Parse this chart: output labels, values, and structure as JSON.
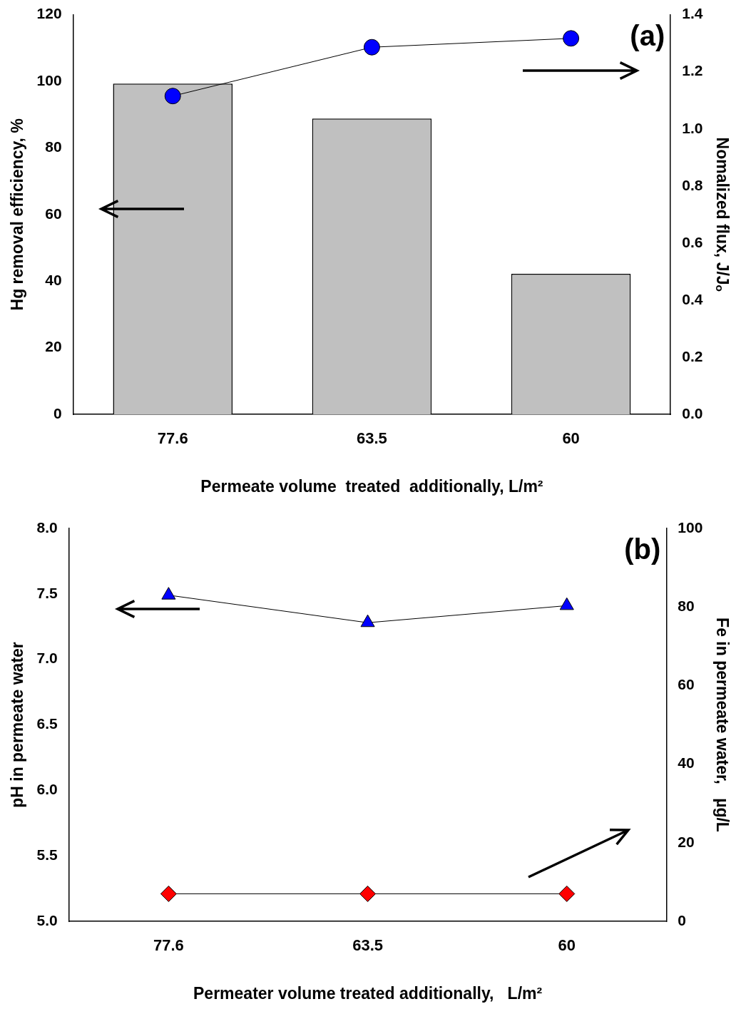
{
  "chart_data": [
    {
      "type": "bar",
      "annotations": [
        "(a)"
      ],
      "xlabel": "Permeate volume  treated  additionally, L/m²",
      "ylabel": "Hg removal efficiency, %",
      "y2label": "Nomalized flux, J/Jₒ",
      "categories": [
        "77.6",
        "63.5",
        "60"
      ],
      "series": [
        {
          "color": "#c0c0c0",
          "values": [
            99.3,
            88.8,
            42.2
          ]
        },
        {
          "type": "line",
          "axis": "y2",
          "color": "#0000ff",
          "marker": "circle",
          "line_style": "solid",
          "values": [
            1.115,
            1.286,
            1.317
          ]
        }
      ],
      "ylim": [
        0,
        120
      ],
      "yticks": [
        0,
        20,
        40,
        60,
        80,
        100,
        120
      ],
      "y2lim": [
        0,
        1.4
      ],
      "y2ticks": [
        {
          "value": 0,
          "label": "0.0"
        },
        {
          "value": 0.2,
          "label": "0.2"
        },
        {
          "value": 0.4,
          "label": "0.4"
        },
        {
          "value": 0.6,
          "label": "0.6"
        },
        {
          "value": 0.8,
          "label": "0.8"
        },
        {
          "value": 1,
          "label": "1.0"
        },
        {
          "value": 1.2,
          "label": "1.2"
        },
        {
          "value": 1.4,
          "label": "1.4"
        }
      ],
      "grid": false,
      "legend": false
    },
    {
      "type": "line",
      "annotations": [
        "(b)"
      ],
      "xlabel": "Permeater volume treated additionally,   L/m²",
      "ylabel": "pH in permeate water",
      "y2label": "Fe in permeate water,   µg/L",
      "categories": [
        "77.6",
        "63.5",
        "60"
      ],
      "series": [
        {
          "color": "#0000ff",
          "marker": "triangle",
          "line_style": "solid",
          "values": [
            7.49,
            7.28,
            7.41
          ]
        },
        {
          "axis": "y2",
          "color": "#ff0000",
          "marker": "diamond",
          "line_style": "solid",
          "values": [
            7,
            7,
            7
          ]
        }
      ],
      "ylim": [
        5,
        8
      ],
      "yticks": [
        {
          "value": 5,
          "label": "5.0"
        },
        {
          "value": 5.5,
          "label": "5.5"
        },
        {
          "value": 6,
          "label": "6.0"
        },
        {
          "value": 6.5,
          "label": "6.5"
        },
        {
          "value": 7,
          "label": "7.0"
        },
        {
          "value": 7.5,
          "label": "7.5"
        },
        {
          "value": 8,
          "label": "8.0"
        }
      ],
      "y2lim": [
        0,
        100
      ],
      "y2ticks": [
        0,
        20,
        40,
        60,
        80,
        100
      ],
      "grid": false,
      "legend": false
    }
  ]
}
